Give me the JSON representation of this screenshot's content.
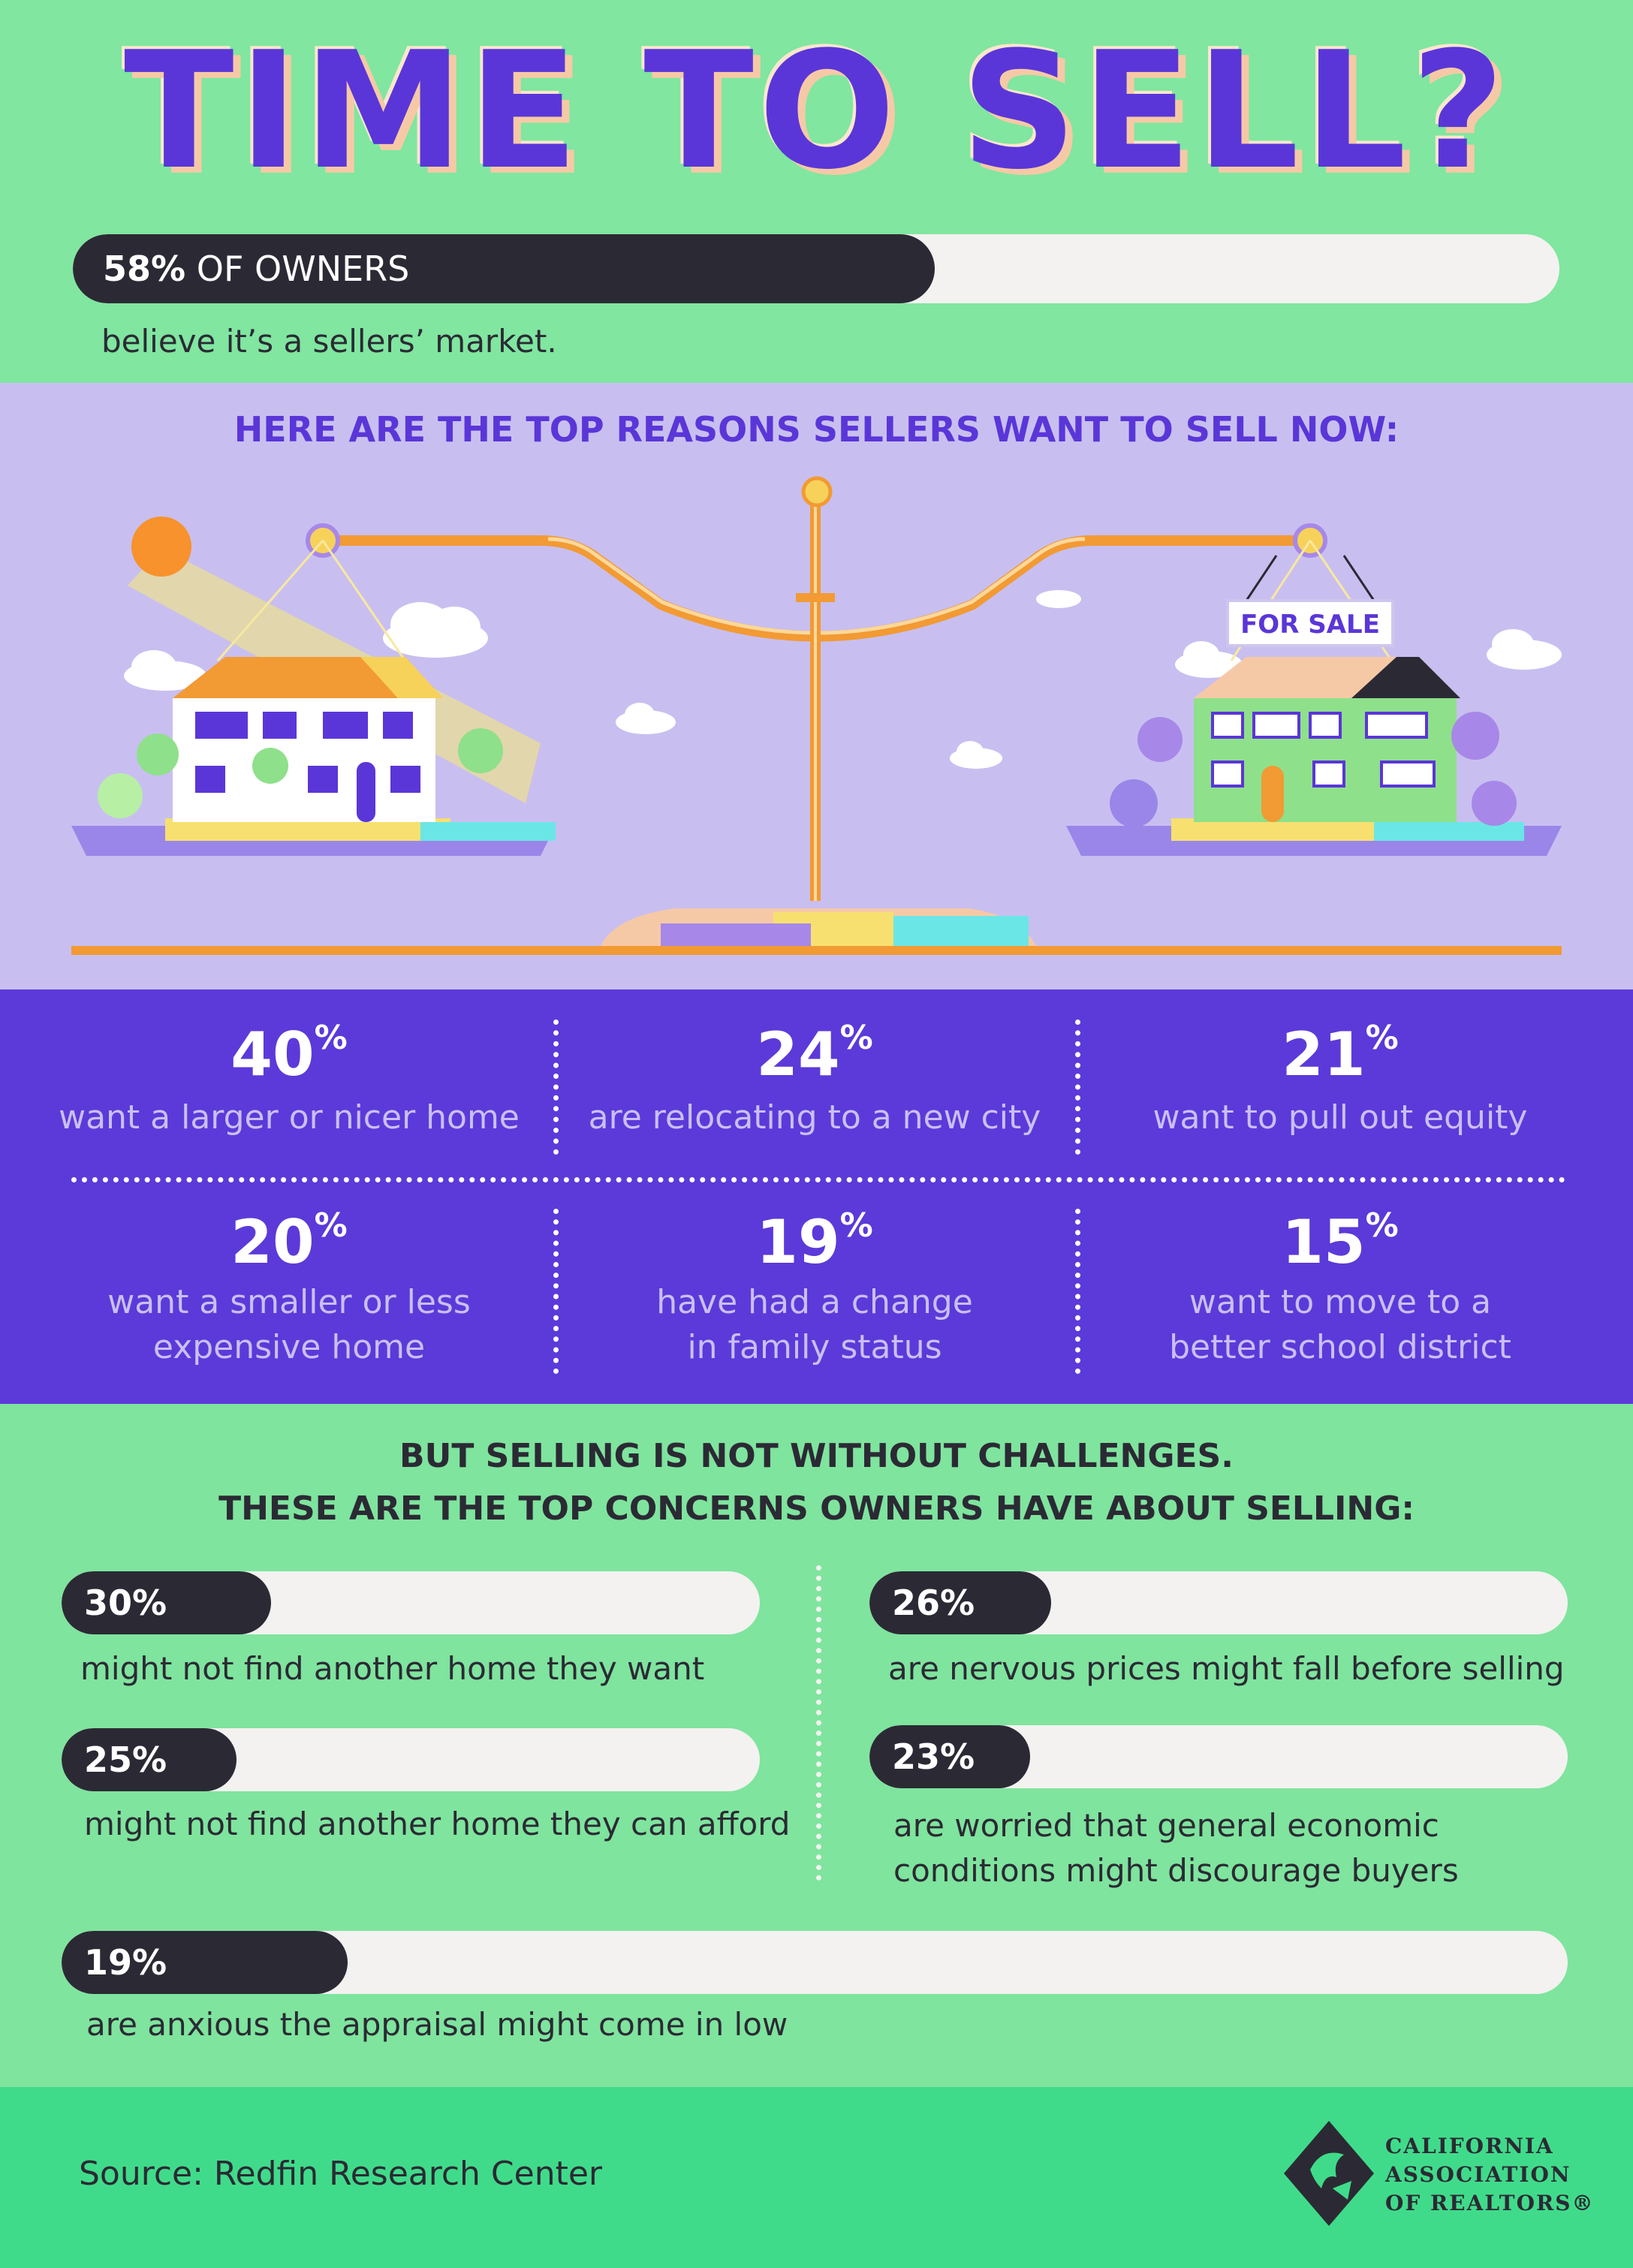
{
  "title": "TIME TO SELL?",
  "hero": {
    "percent_label": "58%",
    "label_rest": " OF OWNERS",
    "fill": 0.58,
    "caption": "believe it’s a sellers’ market."
  },
  "reasons": {
    "heading": "HERE ARE THE TOP REASONS SELLERS WANT TO SELL NOW:",
    "sign_label": "FOR SALE",
    "items": [
      {
        "value": "40",
        "unit": "%",
        "line1": "want a larger or nicer home",
        "line2": ""
      },
      {
        "value": "24",
        "unit": "%",
        "line1": "are relocating to a new city",
        "line2": ""
      },
      {
        "value": "21",
        "unit": "%",
        "line1": "want to pull out equity",
        "line2": ""
      },
      {
        "value": "20",
        "unit": "%",
        "line1": "want a smaller or less",
        "line2": "expensive home"
      },
      {
        "value": "19",
        "unit": "%",
        "line1": "have had a change",
        "line2": "in family status"
      },
      {
        "value": "15",
        "unit": "%",
        "line1": "want to move to a",
        "line2": "better school district"
      }
    ]
  },
  "concerns": {
    "heading_line1": "BUT SELLING IS NOT WITHOUT CHALLENGES.",
    "heading_line2": "THESE ARE THE TOP CONCERNS OWNERS HAVE ABOUT SELLING:",
    "items": [
      {
        "label": "30%",
        "fill": 0.3,
        "line1": "might not find another home they want",
        "line2": ""
      },
      {
        "label": "26%",
        "fill": 0.26,
        "line1": "are nervous prices might fall before selling",
        "line2": ""
      },
      {
        "label": "25%",
        "fill": 0.25,
        "line1": "might not find another home they can afford",
        "line2": ""
      },
      {
        "label": "23%",
        "fill": 0.23,
        "line1": "are worried that general economic",
        "line2": "conditions might discourage buyers"
      },
      {
        "label": "19%",
        "fill": 0.19,
        "line1": "are anxious the appraisal might come in low",
        "line2": ""
      }
    ]
  },
  "footer": {
    "source": "Source: Redfin Research Center",
    "logo_line1": "CALIFORNIA",
    "logo_line2": "ASSOCIATION",
    "logo_line3": "OF REALTORS®"
  },
  "colors": {
    "green": "#80e6a0",
    "purple": "#5b3ad9",
    "lavender": "#c8bff0",
    "dark": "#2b2a34",
    "orange": "#f7a038"
  }
}
